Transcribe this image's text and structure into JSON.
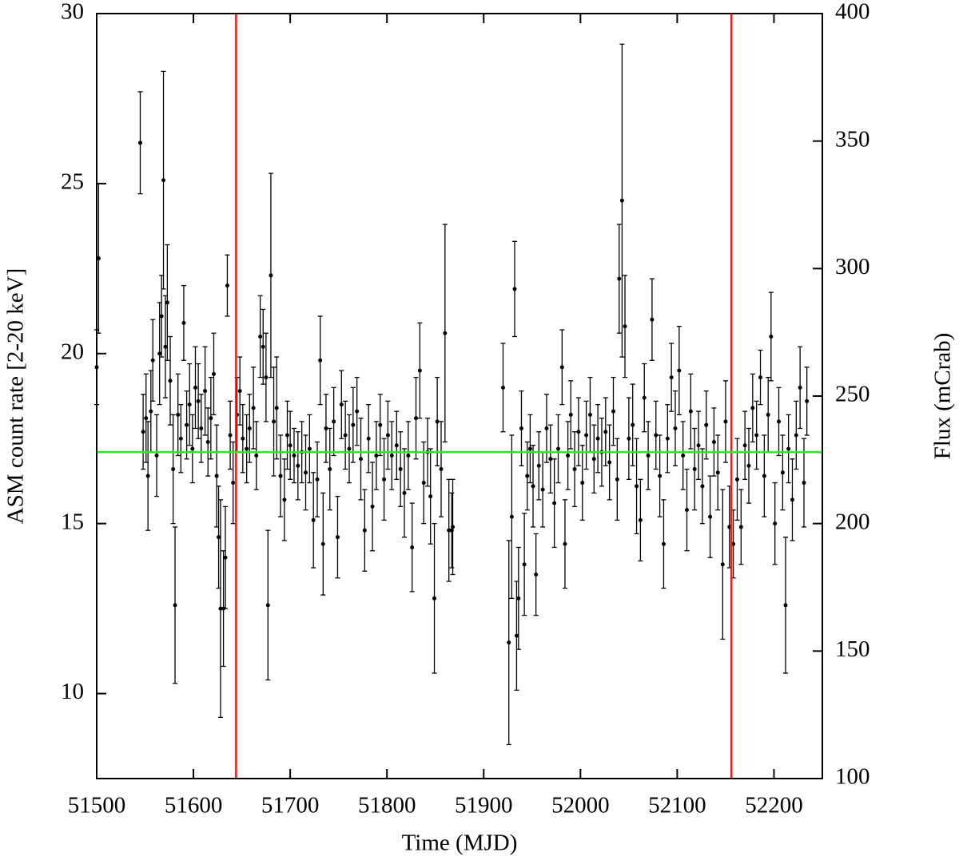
{
  "chart_data": {
    "type": "scatter",
    "xlabel": "Time (MJD)",
    "ylabel": "ASM count rate [2-20 keV]",
    "y2label": "Flux (mCrab)",
    "xlim": [
      51500,
      52250
    ],
    "ylim": [
      7.5,
      30
    ],
    "y2lim": [
      100,
      400
    ],
    "xticks": [
      51500,
      51600,
      51700,
      51800,
      51900,
      52000,
      52100,
      52200
    ],
    "yticks": [
      10,
      15,
      20,
      25,
      30
    ],
    "y2ticks": [
      100,
      150,
      200,
      250,
      300,
      350,
      400
    ],
    "vlines": [
      {
        "x": 51644,
        "color": "#e8201c"
      },
      {
        "x": 52156,
        "color": "#e8201c"
      }
    ],
    "hline": {
      "y": 17.1,
      "color": "#22ee22"
    },
    "x": [
      51500,
      51502,
      51545,
      51548,
      51551,
      51553,
      51556,
      51558,
      51562,
      51565,
      51567,
      51569,
      51571,
      51573,
      51576,
      51579,
      51581,
      51584,
      51587,
      51590,
      51593,
      51596,
      51599,
      51602,
      51605,
      51608,
      51612,
      51615,
      51618,
      51621,
      51624,
      51626,
      51628,
      51631,
      51633,
      51635,
      51638,
      51641,
      51645,
      51648,
      51651,
      51655,
      51658,
      51662,
      51665,
      51669,
      51672,
      51675,
      51677,
      51680,
      51683,
      51686,
      51690,
      51694,
      51697,
      51700,
      51704,
      51708,
      51712,
      51716,
      51720,
      51724,
      51728,
      51731,
      51734,
      51737,
      51741,
      51745,
      51749,
      51753,
      51757,
      51761,
      51765,
      51769,
      51773,
      51777,
      51781,
      51785,
      51789,
      51793,
      51797,
      51801,
      51805,
      51810,
      51814,
      51818,
      51822,
      51826,
      51830,
      51834,
      51838,
      51842,
      51845,
      51849,
      51852,
      51856,
      51860,
      51864,
      51867,
      51868,
      51920,
      51926,
      51929,
      51932,
      51934,
      51936,
      51939,
      51942,
      51945,
      51948,
      51951,
      51954,
      51957,
      51961,
      51965,
      51969,
      51973,
      51977,
      51981,
      51984,
      51987,
      51990,
      51994,
      51998,
      52002,
      52006,
      52010,
      52014,
      52018,
      52022,
      52026,
      52030,
      52034,
      52038,
      52040,
      52043,
      52046,
      52050,
      52054,
      52058,
      52062,
      52066,
      52070,
      52074,
      52078,
      52082,
      52086,
      52090,
      52094,
      52098,
      52102,
      52106,
      52110,
      52114,
      52118,
      52122,
      52126,
      52130,
      52134,
      52138,
      52142,
      52147,
      52150,
      52154,
      52158,
      52162,
      52166,
      52170,
      52174,
      52178,
      52182,
      52186,
      52190,
      52194,
      52197,
      52201,
      52205,
      52209,
      52212,
      52215,
      52219,
      52223,
      52227,
      52231,
      52234
    ],
    "series": [
      {
        "color": "#000000",
        "values": [
          19.6,
          22.8,
          26.2,
          17.7,
          18.1,
          16.4,
          18.3,
          19.8,
          17.0,
          20.0,
          21.1,
          25.1,
          20.2,
          21.5,
          19.2,
          16.6,
          12.6,
          18.2,
          17.5,
          20.9,
          17.9,
          18.5,
          17.2,
          19.0,
          18.6,
          17.8,
          18.9,
          17.4,
          18.1,
          19.4,
          16.4,
          14.6,
          12.5,
          12.5,
          14.0,
          22.0,
          17.6,
          16.2,
          18.2,
          18.9,
          17.5,
          17.2,
          17.8,
          18.4,
          17.0,
          20.5,
          20.2,
          19.3,
          12.6,
          22.3,
          18.0,
          18.4,
          16.4,
          15.7,
          17.6,
          17.3,
          17.0,
          16.7,
          17.1,
          16.5,
          17.2,
          15.1,
          16.3,
          19.8,
          14.4,
          17.8,
          16.6,
          18.0,
          14.6,
          18.5,
          17.6,
          17.2,
          17.9,
          18.3,
          16.9,
          14.8,
          17.5,
          15.5,
          17.0,
          17.9,
          16.3,
          17.6,
          17.0,
          17.3,
          16.6,
          15.9,
          17.0,
          14.3,
          18.1,
          19.5,
          16.2,
          17.1,
          15.8,
          12.8,
          18.0,
          16.6,
          20.6,
          14.8,
          14.8,
          14.9,
          19.0,
          11.5,
          15.2,
          21.9,
          11.7,
          12.8,
          17.8,
          13.8,
          16.4,
          17.2,
          16.1,
          13.5,
          16.7,
          16.0,
          17.8,
          16.9,
          15.6,
          17.2,
          19.6,
          14.4,
          17.0,
          18.2,
          16.6,
          17.7,
          16.2,
          17.6,
          18.2,
          16.9,
          17.5,
          17.1,
          17.7,
          16.8,
          18.3,
          16.3,
          22.2,
          24.5,
          20.8,
          17.5,
          17.9,
          16.1,
          15.1,
          18.7,
          17.0,
          21.0,
          17.6,
          16.4,
          14.4,
          17.5,
          19.3,
          17.8,
          19.5,
          17.0,
          15.4,
          18.3,
          16.6,
          17.3,
          16.1,
          17.9,
          15.2,
          17.4,
          16.5,
          13.8,
          18.0,
          14.9,
          14.4,
          16.3,
          14.9,
          17.3,
          16.7,
          18.4,
          17.6,
          19.3,
          16.4,
          18.2,
          20.5,
          15.0,
          18.0,
          16.5,
          12.6,
          17.2,
          15.7,
          17.6,
          19.0,
          16.2,
          18.6
        ],
        "errors": [
          1.1,
          2.2,
          1.5,
          1.1,
          1.3,
          1.6,
          1.2,
          1.2,
          1.2,
          1.5,
          1.2,
          3.2,
          1.5,
          1.7,
          1.3,
          1.6,
          2.3,
          1.2,
          1.0,
          1.1,
          1.0,
          1.2,
          1.0,
          1.2,
          1.1,
          1.0,
          1.3,
          1.0,
          1.2,
          1.2,
          1.5,
          1.5,
          3.2,
          1.7,
          1.5,
          0.9,
          1.0,
          1.2,
          1.1,
          1.0,
          1.0,
          1.0,
          1.0,
          1.2,
          1.0,
          1.2,
          1.1,
          1.3,
          2.2,
          3.0,
          1.6,
          1.5,
          1.2,
          1.2,
          1.0,
          1.0,
          0.8,
          1.0,
          0.9,
          1.1,
          1.0,
          1.4,
          1.1,
          1.3,
          1.5,
          1.0,
          1.2,
          1.0,
          1.2,
          1.0,
          1.0,
          1.0,
          1.1,
          1.0,
          1.2,
          1.2,
          1.0,
          1.3,
          1.0,
          0.9,
          1.2,
          1.0,
          1.0,
          1.0,
          1.1,
          1.3,
          1.0,
          1.3,
          1.2,
          1.4,
          1.2,
          1.0,
          1.4,
          2.2,
          1.3,
          1.4,
          3.2,
          1.5,
          1.1,
          1.4,
          1.3,
          3.0,
          2.4,
          1.4,
          1.6,
          1.5,
          1.1,
          1.5,
          1.0,
          1.0,
          1.2,
          1.2,
          1.0,
          1.1,
          1.0,
          1.0,
          1.3,
          1.0,
          1.1,
          1.3,
          1.0,
          1.0,
          1.1,
          1.0,
          1.1,
          1.0,
          1.1,
          1.0,
          1.0,
          1.0,
          1.0,
          1.1,
          1.0,
          1.2,
          1.6,
          4.6,
          1.5,
          1.2,
          1.2,
          1.4,
          1.2,
          1.0,
          1.0,
          1.2,
          1.0,
          1.2,
          1.3,
          1.0,
          1.0,
          1.1,
          1.3,
          1.0,
          1.2,
          1.1,
          1.2,
          1.0,
          1.1,
          1.0,
          1.2,
          1.0,
          1.1,
          2.2,
          1.2,
          1.2,
          1.0,
          1.2,
          1.1,
          1.0,
          1.1,
          1.0,
          1.0,
          0.8,
          1.2,
          1.1,
          1.3,
          1.2,
          1.0,
          1.1,
          2.0,
          1.0,
          1.2,
          1.0,
          1.2,
          1.3,
          1.0
        ]
      }
    ]
  }
}
